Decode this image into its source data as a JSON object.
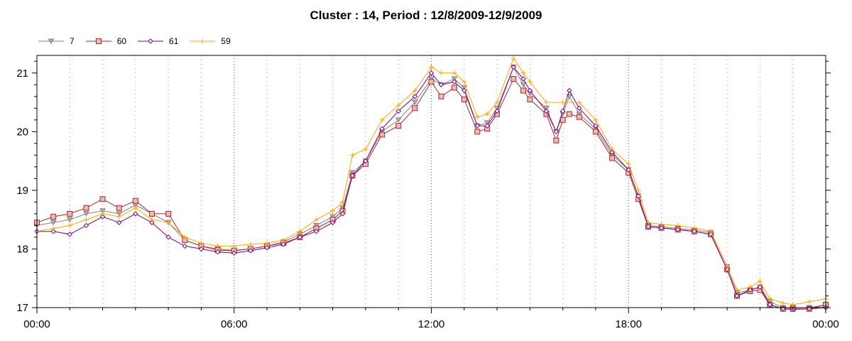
{
  "chart_data": {
    "type": "line",
    "title": "Cluster : 14, Period : 12/8/2009-12/9/2009",
    "xlabel": "",
    "ylabel": "",
    "x_range_hours": [
      0,
      24
    ],
    "ylim": [
      17,
      21.3
    ],
    "x_ticks": [
      {
        "hour": 0,
        "label": "00:00"
      },
      {
        "hour": 6,
        "label": "06:00"
      },
      {
        "hour": 12,
        "label": "12:00"
      },
      {
        "hour": 18,
        "label": "18:00"
      },
      {
        "hour": 24,
        "label": "00:00"
      }
    ],
    "y_ticks": [
      17,
      18,
      19,
      20,
      21
    ],
    "grid": "dotted vertical lines every hour; no horizontal grid",
    "legend_position": "top-left",
    "series": [
      {
        "name": "7",
        "color": "#808080",
        "marker": "triangle-down",
        "points": [
          [
            0,
            18.4
          ],
          [
            0.5,
            18.45
          ],
          [
            1,
            18.5
          ],
          [
            1.5,
            18.6
          ],
          [
            2,
            18.65
          ],
          [
            2.5,
            18.6
          ],
          [
            3,
            18.75
          ],
          [
            3.5,
            18.6
          ],
          [
            4,
            18.45
          ],
          [
            4.5,
            18.15
          ],
          [
            5,
            18.05
          ],
          [
            5.5,
            18.0
          ],
          [
            6,
            17.98
          ],
          [
            6.5,
            18.0
          ],
          [
            7,
            18.05
          ],
          [
            7.5,
            18.12
          ],
          [
            8,
            18.25
          ],
          [
            8.5,
            18.4
          ],
          [
            9,
            18.55
          ],
          [
            9.3,
            18.7
          ],
          [
            9.6,
            19.3
          ],
          [
            10,
            19.5
          ],
          [
            10.5,
            20.0
          ],
          [
            11,
            20.2
          ],
          [
            11.5,
            20.5
          ],
          [
            12,
            20.9
          ],
          [
            12.3,
            20.8
          ],
          [
            12.7,
            20.9
          ],
          [
            13,
            20.75
          ],
          [
            13.4,
            20.1
          ],
          [
            13.7,
            20.15
          ],
          [
            14,
            20.4
          ],
          [
            14.5,
            21.1
          ],
          [
            14.8,
            20.8
          ],
          [
            15,
            20.65
          ],
          [
            15.5,
            20.4
          ],
          [
            15.8,
            20.0
          ],
          [
            16,
            20.3
          ],
          [
            16.2,
            20.6
          ],
          [
            16.5,
            20.3
          ],
          [
            17,
            20.05
          ],
          [
            17.5,
            19.6
          ],
          [
            18,
            19.35
          ],
          [
            18.3,
            18.9
          ],
          [
            18.6,
            18.4
          ],
          [
            19,
            18.38
          ],
          [
            19.5,
            18.35
          ],
          [
            20,
            18.32
          ],
          [
            20.5,
            18.28
          ],
          [
            21,
            17.7
          ],
          [
            21.3,
            17.25
          ],
          [
            21.7,
            17.3
          ],
          [
            22,
            17.35
          ],
          [
            22.3,
            17.1
          ],
          [
            22.7,
            17.0
          ],
          [
            23,
            17.0
          ],
          [
            23.5,
            17.0
          ],
          [
            24,
            17.05
          ]
        ]
      },
      {
        "name": "60",
        "color": "#a52a2a",
        "marker": "square",
        "points": [
          [
            0,
            18.45
          ],
          [
            0.5,
            18.55
          ],
          [
            1,
            18.6
          ],
          [
            1.5,
            18.7
          ],
          [
            2,
            18.85
          ],
          [
            2.5,
            18.7
          ],
          [
            3,
            18.82
          ],
          [
            3.5,
            18.6
          ],
          [
            4,
            18.6
          ],
          [
            4.5,
            18.15
          ],
          [
            5,
            18.05
          ],
          [
            5.5,
            17.98
          ],
          [
            6,
            17.97
          ],
          [
            6.5,
            18.0
          ],
          [
            7,
            18.05
          ],
          [
            7.5,
            18.1
          ],
          [
            8,
            18.2
          ],
          [
            8.5,
            18.35
          ],
          [
            9,
            18.5
          ],
          [
            9.3,
            18.65
          ],
          [
            9.6,
            19.25
          ],
          [
            10,
            19.45
          ],
          [
            10.5,
            19.95
          ],
          [
            11,
            20.1
          ],
          [
            11.5,
            20.4
          ],
          [
            12,
            20.85
          ],
          [
            12.3,
            20.6
          ],
          [
            12.7,
            20.75
          ],
          [
            13,
            20.55
          ],
          [
            13.4,
            20.0
          ],
          [
            13.7,
            20.05
          ],
          [
            14,
            20.3
          ],
          [
            14.5,
            20.9
          ],
          [
            14.8,
            20.7
          ],
          [
            15,
            20.55
          ],
          [
            15.5,
            20.3
          ],
          [
            15.8,
            19.85
          ],
          [
            16,
            20.2
          ],
          [
            16.2,
            20.3
          ],
          [
            16.5,
            20.25
          ],
          [
            17,
            20.0
          ],
          [
            17.5,
            19.55
          ],
          [
            18,
            19.3
          ],
          [
            18.3,
            18.85
          ],
          [
            18.6,
            18.38
          ],
          [
            19,
            18.36
          ],
          [
            19.5,
            18.33
          ],
          [
            20,
            18.3
          ],
          [
            20.5,
            18.25
          ],
          [
            21,
            17.65
          ],
          [
            21.3,
            17.2
          ],
          [
            21.7,
            17.28
          ],
          [
            22,
            17.3
          ],
          [
            22.3,
            17.05
          ],
          [
            22.7,
            16.98
          ],
          [
            23,
            16.98
          ],
          [
            23.5,
            16.98
          ],
          [
            24,
            17.05
          ]
        ]
      },
      {
        "name": "61",
        "color": "#800080",
        "marker": "diamond",
        "points": [
          [
            0,
            18.3
          ],
          [
            0.5,
            18.3
          ],
          [
            1,
            18.25
          ],
          [
            1.5,
            18.4
          ],
          [
            2,
            18.55
          ],
          [
            2.5,
            18.45
          ],
          [
            3,
            18.6
          ],
          [
            3.5,
            18.45
          ],
          [
            4,
            18.2
          ],
          [
            4.5,
            18.05
          ],
          [
            5,
            18.0
          ],
          [
            5.5,
            17.95
          ],
          [
            6,
            17.93
          ],
          [
            6.5,
            17.97
          ],
          [
            7,
            18.02
          ],
          [
            7.5,
            18.08
          ],
          [
            8,
            18.2
          ],
          [
            8.5,
            18.3
          ],
          [
            9,
            18.45
          ],
          [
            9.3,
            18.6
          ],
          [
            9.6,
            19.25
          ],
          [
            10,
            19.5
          ],
          [
            10.5,
            20.05
          ],
          [
            11,
            20.35
          ],
          [
            11.5,
            20.6
          ],
          [
            12,
            21.0
          ],
          [
            12.3,
            20.8
          ],
          [
            12.7,
            20.85
          ],
          [
            13,
            20.7
          ],
          [
            13.4,
            20.1
          ],
          [
            13.7,
            20.1
          ],
          [
            14,
            20.35
          ],
          [
            14.5,
            21.1
          ],
          [
            14.8,
            20.9
          ],
          [
            15,
            20.7
          ],
          [
            15.5,
            20.35
          ],
          [
            15.8,
            20.0
          ],
          [
            16,
            20.35
          ],
          [
            16.2,
            20.7
          ],
          [
            16.5,
            20.4
          ],
          [
            17,
            20.1
          ],
          [
            17.5,
            19.65
          ],
          [
            18,
            19.35
          ],
          [
            18.3,
            18.9
          ],
          [
            18.6,
            18.38
          ],
          [
            19,
            18.36
          ],
          [
            19.5,
            18.33
          ],
          [
            20,
            18.3
          ],
          [
            20.5,
            18.25
          ],
          [
            21,
            17.65
          ],
          [
            21.3,
            17.2
          ],
          [
            21.7,
            17.3
          ],
          [
            22,
            17.35
          ],
          [
            22.3,
            17.05
          ],
          [
            22.7,
            16.98
          ],
          [
            23,
            16.97
          ],
          [
            23.5,
            16.98
          ],
          [
            24,
            17.0
          ]
        ]
      },
      {
        "name": "59",
        "color": "#ffa500",
        "marker": "plus",
        "points": [
          [
            0,
            18.3
          ],
          [
            0.5,
            18.35
          ],
          [
            1,
            18.4
          ],
          [
            1.5,
            18.5
          ],
          [
            2,
            18.6
          ],
          [
            2.5,
            18.55
          ],
          [
            3,
            18.7
          ],
          [
            3.5,
            18.5
          ],
          [
            4,
            18.45
          ],
          [
            4.5,
            18.2
          ],
          [
            5,
            18.1
          ],
          [
            5.5,
            18.05
          ],
          [
            6,
            18.05
          ],
          [
            6.5,
            18.08
          ],
          [
            7,
            18.1
          ],
          [
            7.5,
            18.15
          ],
          [
            8,
            18.3
          ],
          [
            8.5,
            18.5
          ],
          [
            9,
            18.65
          ],
          [
            9.3,
            18.8
          ],
          [
            9.6,
            19.6
          ],
          [
            10,
            19.7
          ],
          [
            10.5,
            20.2
          ],
          [
            11,
            20.45
          ],
          [
            11.5,
            20.7
          ],
          [
            12,
            21.1
          ],
          [
            12.3,
            21.0
          ],
          [
            12.7,
            21.0
          ],
          [
            13,
            20.85
          ],
          [
            13.4,
            20.25
          ],
          [
            13.7,
            20.3
          ],
          [
            14,
            20.5
          ],
          [
            14.5,
            21.25
          ],
          [
            14.8,
            21.0
          ],
          [
            15,
            20.85
          ],
          [
            15.5,
            20.5
          ],
          [
            16,
            20.5
          ],
          [
            16.5,
            20.5
          ],
          [
            17,
            20.2
          ],
          [
            17.5,
            19.7
          ],
          [
            18,
            19.45
          ],
          [
            18.3,
            19.0
          ],
          [
            18.6,
            18.45
          ],
          [
            19,
            18.42
          ],
          [
            19.5,
            18.4
          ],
          [
            20,
            18.36
          ],
          [
            20.5,
            18.3
          ],
          [
            21,
            17.7
          ],
          [
            21.3,
            17.3
          ],
          [
            21.7,
            17.35
          ],
          [
            22,
            17.45
          ],
          [
            22.3,
            17.15
          ],
          [
            22.7,
            17.08
          ],
          [
            23,
            17.05
          ],
          [
            23.5,
            17.1
          ],
          [
            24,
            17.15
          ]
        ]
      }
    ]
  }
}
